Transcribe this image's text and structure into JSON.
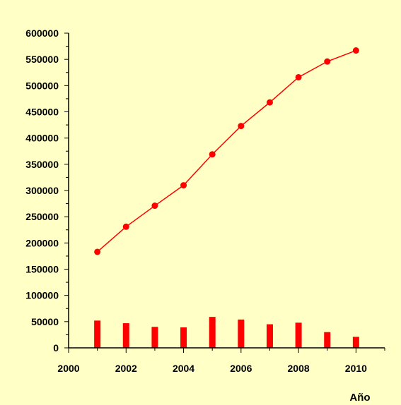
{
  "chart_data": {
    "type": "line",
    "xlabel": "Año",
    "ylabel": "",
    "xlim": [
      2000,
      2011
    ],
    "ylim": [
      0,
      600000
    ],
    "x_ticks": [
      2000,
      2002,
      2004,
      2006,
      2008,
      2010
    ],
    "y_ticks": [
      0,
      50000,
      100000,
      150000,
      200000,
      250000,
      300000,
      350000,
      400000,
      450000,
      500000,
      550000,
      600000
    ],
    "grid": false,
    "legend": "none",
    "colors": {
      "series": "#ff0000",
      "background": "#ffffc6",
      "axis": "#000000"
    },
    "x": [
      2001,
      2002,
      2003,
      2004,
      2005,
      2006,
      2007,
      2008,
      2009,
      2010
    ],
    "series": [
      {
        "type": "line",
        "values": [
          183000,
          231000,
          271000,
          310000,
          369000,
          423000,
          468000,
          516000,
          546000,
          567000
        ]
      },
      {
        "type": "bar",
        "values": [
          52000,
          47000,
          40000,
          39000,
          59000,
          54000,
          45000,
          48000,
          30000,
          21000
        ]
      }
    ]
  }
}
